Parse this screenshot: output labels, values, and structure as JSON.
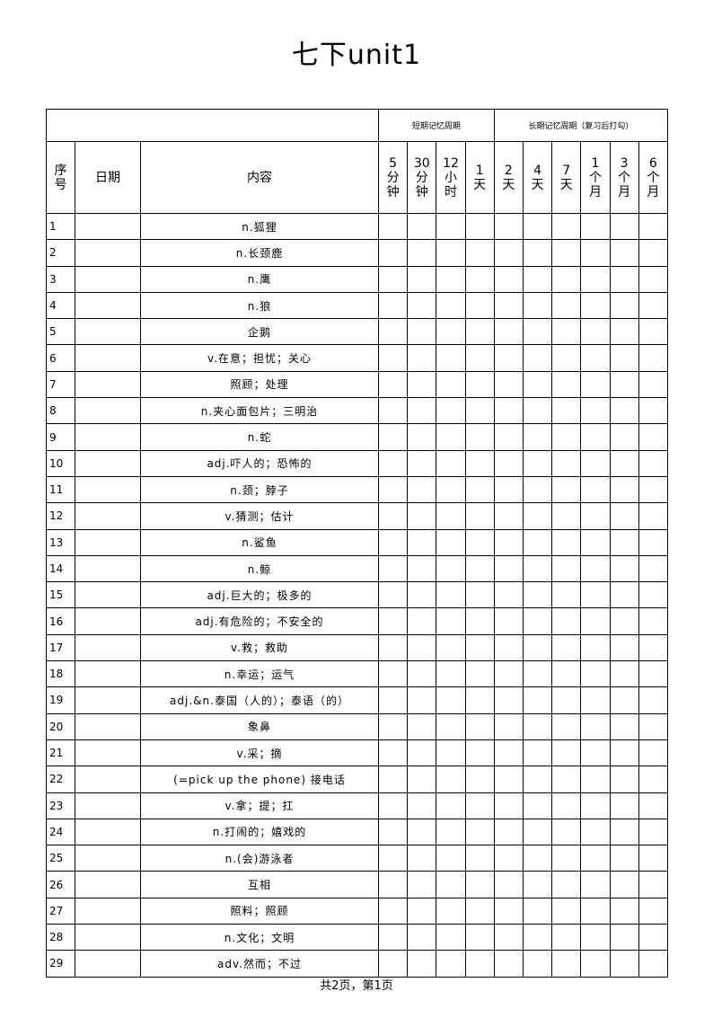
{
  "title": "七下unit1",
  "header": {
    "short_term": "短期记忆周期",
    "long_term": "长期记忆周期（复习后打勾）",
    "index": "序号",
    "date": "日期",
    "content": "内容",
    "intervals": [
      "5分钟",
      "30分钟",
      "12小时",
      "1天",
      "2天",
      "4天",
      "7天",
      "1个月",
      "3个月",
      "6个月"
    ],
    "interval_lines": [
      [
        "5",
        "分",
        "钟"
      ],
      [
        "30",
        "分",
        "钟"
      ],
      [
        "12",
        "小",
        "时"
      ],
      [
        "1",
        "天"
      ],
      [
        "2",
        "天"
      ],
      [
        "4",
        "天"
      ],
      [
        "7",
        "天"
      ],
      [
        "1",
        "个",
        "月"
      ],
      [
        "3",
        "个",
        "月"
      ],
      [
        "6",
        "个",
        "月"
      ]
    ]
  },
  "rows": [
    {
      "n": "1",
      "content": "n.狐狸"
    },
    {
      "n": "2",
      "content": "n.长颈鹿"
    },
    {
      "n": "3",
      "content": "n.鹰"
    },
    {
      "n": "4",
      "content": "n.狼"
    },
    {
      "n": "5",
      "content": "企鹅"
    },
    {
      "n": "6",
      "content": "v.在意；担忧；关心"
    },
    {
      "n": "7",
      "content": "照顾；处理"
    },
    {
      "n": "8",
      "content": "n.夹心面包片；三明治"
    },
    {
      "n": "9",
      "content": "n.蛇"
    },
    {
      "n": "10",
      "content": "adj.吓人的；恐怖的"
    },
    {
      "n": "11",
      "content": "n.颈；脖子"
    },
    {
      "n": "12",
      "content": "v.猜测；估计"
    },
    {
      "n": "13",
      "content": "n.鲨鱼"
    },
    {
      "n": "14",
      "content": "n.鲸"
    },
    {
      "n": "15",
      "content": "adj.巨大的；极多的"
    },
    {
      "n": "16",
      "content": "adj.有危险的；不安全的"
    },
    {
      "n": "17",
      "content": "v.救；救助"
    },
    {
      "n": "18",
      "content": "n.幸运；运气"
    },
    {
      "n": "19",
      "content": "adj.&n.泰国（人的）；泰语（的）"
    },
    {
      "n": "20",
      "content": "象鼻"
    },
    {
      "n": "21",
      "content": "v.采；摘"
    },
    {
      "n": "22",
      "content": "(=pick up the phone) 接电话"
    },
    {
      "n": "23",
      "content": "v.拿；提；扛"
    },
    {
      "n": "24",
      "content": "n.打闹的；嬉戏的"
    },
    {
      "n": "25",
      "content": "n.(会)游泳者"
    },
    {
      "n": "26",
      "content": "互相"
    },
    {
      "n": "27",
      "content": "照料；照顾"
    },
    {
      "n": "28",
      "content": "n.文化；文明"
    },
    {
      "n": "29",
      "content": "adv.然而；不过"
    }
  ],
  "footer": "共2页，第1页"
}
